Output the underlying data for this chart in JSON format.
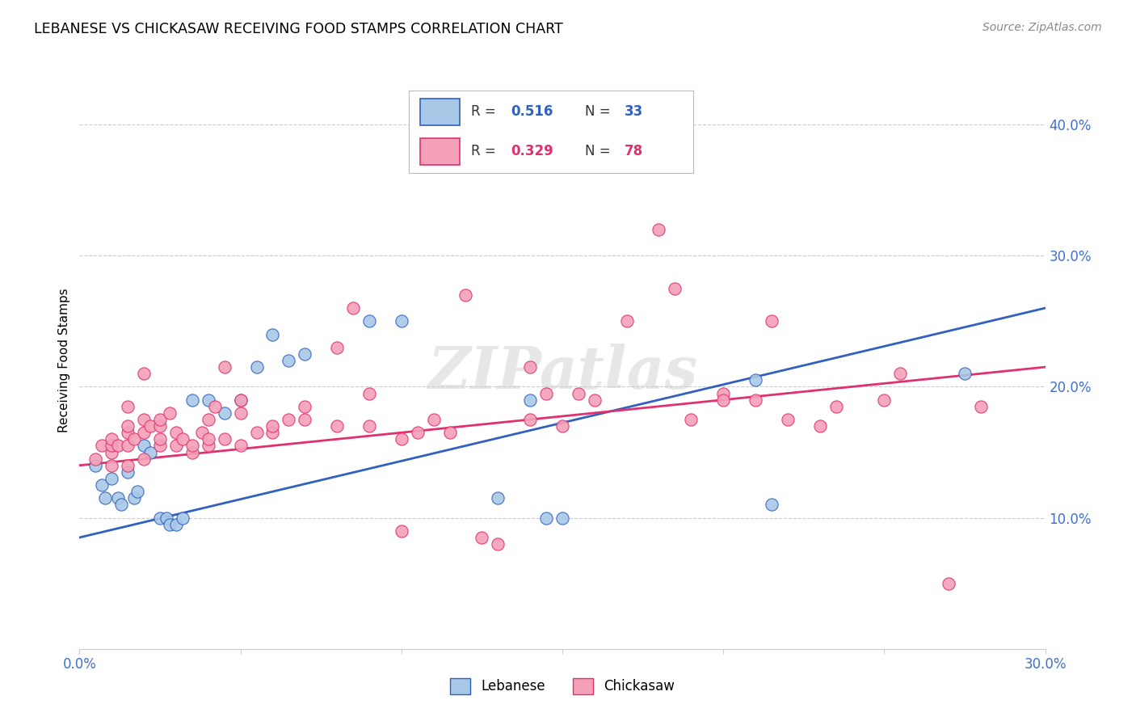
{
  "title": "LEBANESE VS CHICKASAW RECEIVING FOOD STAMPS CORRELATION CHART",
  "source": "Source: ZipAtlas.com",
  "ylabel_label": "Receiving Food Stamps",
  "xlim": [
    0.0,
    0.3
  ],
  "ylim": [
    0.0,
    0.44
  ],
  "xticks": [
    0.0,
    0.05,
    0.1,
    0.15,
    0.2,
    0.25,
    0.3
  ],
  "color_blue": "#a8c8e8",
  "color_pink": "#f4a0b8",
  "line_blue": "#3060c0",
  "line_pink": "#e03070",
  "watermark": "ZIPatlas",
  "legend_r1": "R = 0.516",
  "legend_n1": "N = 33",
  "legend_r2": "R = 0.329",
  "legend_n2": "N = 78",
  "lebanese_x": [
    0.005,
    0.007,
    0.008,
    0.01,
    0.012,
    0.013,
    0.015,
    0.017,
    0.018,
    0.02,
    0.022,
    0.025,
    0.027,
    0.028,
    0.03,
    0.032,
    0.035,
    0.04,
    0.045,
    0.05,
    0.055,
    0.06,
    0.065,
    0.07,
    0.09,
    0.1,
    0.13,
    0.14,
    0.145,
    0.15,
    0.21,
    0.215,
    0.275
  ],
  "lebanese_y": [
    0.14,
    0.125,
    0.115,
    0.13,
    0.115,
    0.11,
    0.135,
    0.115,
    0.12,
    0.155,
    0.15,
    0.1,
    0.1,
    0.095,
    0.095,
    0.1,
    0.19,
    0.19,
    0.18,
    0.19,
    0.215,
    0.24,
    0.22,
    0.225,
    0.25,
    0.25,
    0.115,
    0.19,
    0.1,
    0.1,
    0.205,
    0.11,
    0.21
  ],
  "chickasaw_x": [
    0.005,
    0.007,
    0.01,
    0.01,
    0.01,
    0.01,
    0.012,
    0.015,
    0.015,
    0.015,
    0.015,
    0.015,
    0.017,
    0.02,
    0.02,
    0.02,
    0.02,
    0.022,
    0.025,
    0.025,
    0.025,
    0.025,
    0.028,
    0.03,
    0.03,
    0.032,
    0.035,
    0.035,
    0.038,
    0.04,
    0.04,
    0.04,
    0.042,
    0.045,
    0.045,
    0.05,
    0.05,
    0.05,
    0.055,
    0.06,
    0.06,
    0.065,
    0.07,
    0.07,
    0.08,
    0.08,
    0.085,
    0.09,
    0.09,
    0.1,
    0.1,
    0.105,
    0.11,
    0.115,
    0.12,
    0.125,
    0.13,
    0.14,
    0.145,
    0.14,
    0.15,
    0.155,
    0.16,
    0.17,
    0.18,
    0.185,
    0.19,
    0.2,
    0.2,
    0.21,
    0.215,
    0.22,
    0.23,
    0.235,
    0.25,
    0.255,
    0.27,
    0.28
  ],
  "chickasaw_y": [
    0.145,
    0.155,
    0.14,
    0.15,
    0.155,
    0.16,
    0.155,
    0.14,
    0.155,
    0.165,
    0.17,
    0.185,
    0.16,
    0.145,
    0.165,
    0.175,
    0.21,
    0.17,
    0.155,
    0.16,
    0.17,
    0.175,
    0.18,
    0.155,
    0.165,
    0.16,
    0.15,
    0.155,
    0.165,
    0.155,
    0.16,
    0.175,
    0.185,
    0.16,
    0.215,
    0.155,
    0.18,
    0.19,
    0.165,
    0.165,
    0.17,
    0.175,
    0.175,
    0.185,
    0.17,
    0.23,
    0.26,
    0.17,
    0.195,
    0.09,
    0.16,
    0.165,
    0.175,
    0.165,
    0.27,
    0.085,
    0.08,
    0.215,
    0.195,
    0.175,
    0.17,
    0.195,
    0.19,
    0.25,
    0.32,
    0.275,
    0.175,
    0.195,
    0.19,
    0.19,
    0.25,
    0.175,
    0.17,
    0.185,
    0.19,
    0.21,
    0.05,
    0.185
  ],
  "blue_line_x": [
    0.0,
    0.3
  ],
  "blue_line_y": [
    0.085,
    0.26
  ],
  "pink_line_x": [
    0.0,
    0.3
  ],
  "pink_line_y": [
    0.14,
    0.215
  ]
}
